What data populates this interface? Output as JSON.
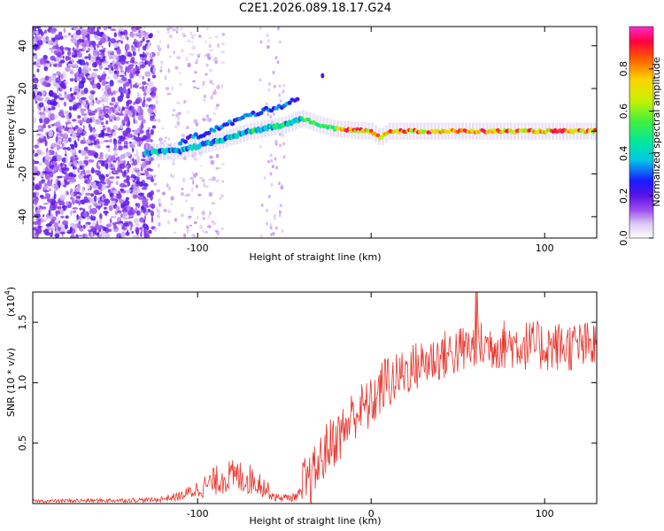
{
  "title": "C2E1.2026.089.18.17.G24",
  "chart_data": [
    {
      "id": "spectrogram",
      "type": "heatmap",
      "xlabel": "Height of straight line (km)",
      "ylabel": "Frequency (Hz)",
      "xlim": [
        -195,
        130
      ],
      "ylim": [
        -50,
        49
      ],
      "xticks": [
        -100,
        0,
        100
      ],
      "xtick_labels": [
        "-100",
        "",
        "100"
      ],
      "yticks": [
        -40,
        -20,
        0,
        20,
        40
      ],
      "ytick_labels": [
        "-40",
        "-20",
        "0",
        "20",
        "40"
      ],
      "track": [
        {
          "x": -130,
          "y": -10
        },
        {
          "x": -110,
          "y": -9
        },
        {
          "x": -90,
          "y": -5
        },
        {
          "x": -70,
          "y": 0
        },
        {
          "x": -50,
          "y": 3
        },
        {
          "x": -40,
          "y": 6
        },
        {
          "x": -30,
          "y": 3
        },
        {
          "x": -20,
          "y": 1
        },
        {
          "x": 0,
          "y": 0
        },
        {
          "x": 5,
          "y": -3
        },
        {
          "x": 10,
          "y": 0
        },
        {
          "x": 130,
          "y": 0
        }
      ],
      "colorbar": {
        "label": "Normalized spectral amplitude",
        "range": [
          0,
          1
        ],
        "ticks": [
          0.0,
          0.2,
          0.4,
          0.6,
          0.8
        ],
        "tick_labels": [
          "0.0",
          "0.2",
          "0.4",
          "0.6",
          "0.8"
        ]
      }
    },
    {
      "id": "snr",
      "type": "line",
      "xlabel": "Height of straight line (km)",
      "ylabel": "SNR (10 * v/v)",
      "y_multiplier": "(x10",
      "y_multiplier_exp": "4",
      "y_multiplier_close": ")",
      "xlim": [
        -195,
        130
      ],
      "ylim": [
        0,
        1.75
      ],
      "xticks": [
        -100,
        0,
        100
      ],
      "xtick_labels": [
        "-100",
        "0",
        "100"
      ],
      "yticks": [
        0.5,
        1.0,
        1.5
      ],
      "ytick_labels": [
        "0.5",
        "1.0",
        "1.5"
      ],
      "color": "#e8332a",
      "envelope": [
        {
          "x": -195,
          "y": 0.02
        },
        {
          "x": -125,
          "y": 0.03
        },
        {
          "x": -110,
          "y": 0.06
        },
        {
          "x": -95,
          "y": 0.15
        },
        {
          "x": -85,
          "y": 0.22
        },
        {
          "x": -75,
          "y": 0.22
        },
        {
          "x": -65,
          "y": 0.18
        },
        {
          "x": -55,
          "y": 0.05
        },
        {
          "x": -45,
          "y": 0.05
        },
        {
          "x": -35,
          "y": 0.12
        },
        {
          "x": -25,
          "y": 0.4
        },
        {
          "x": -15,
          "y": 0.55
        },
        {
          "x": -10,
          "y": 0.68
        },
        {
          "x": 0,
          "y": 0.75
        },
        {
          "x": 10,
          "y": 0.98
        },
        {
          "x": 20,
          "y": 1.1
        },
        {
          "x": 40,
          "y": 1.22
        },
        {
          "x": 60,
          "y": 1.3
        },
        {
          "x": 80,
          "y": 1.32
        },
        {
          "x": 100,
          "y": 1.3
        },
        {
          "x": 130,
          "y": 1.3
        }
      ]
    }
  ]
}
